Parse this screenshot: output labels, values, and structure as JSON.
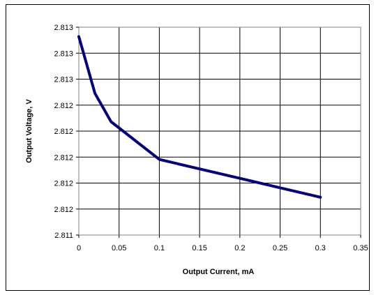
{
  "chart_data": {
    "type": "line",
    "title": "",
    "xlabel": "Output Current, mA",
    "ylabel": "Output Voltage, V",
    "xlim": [
      0,
      0.35
    ],
    "ylim": [
      2.8109,
      2.8131
    ],
    "grid": true,
    "x_ticks": [
      "0",
      "0.05",
      "0.1",
      "0.15",
      "0.2",
      "0.25",
      "0.3",
      "0.35"
    ],
    "y_ticks": [
      "2.811",
      "2.812",
      "2.812",
      "2.812",
      "2.812",
      "2.812",
      "2.813",
      "2.813",
      "2.813"
    ],
    "series": [
      {
        "color": "#000080",
        "x": [
          0,
          0.02,
          0.04,
          0.1,
          0.15,
          0.2,
          0.25,
          0.3
        ],
        "y": [
          2.813,
          2.8124,
          2.8121,
          2.8117,
          2.8116,
          2.8115,
          2.8114,
          2.8113
        ]
      }
    ]
  }
}
